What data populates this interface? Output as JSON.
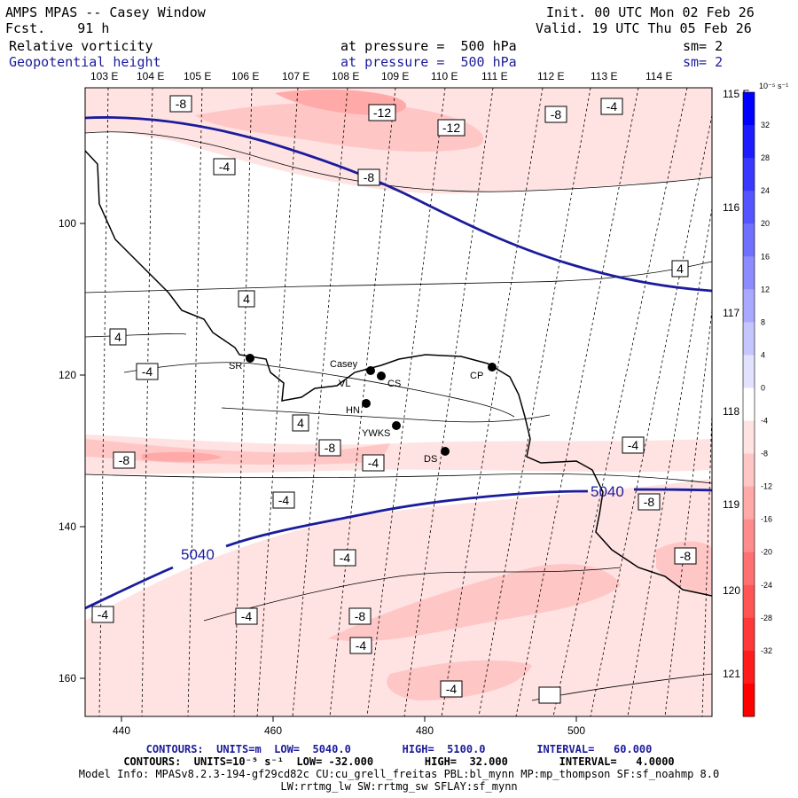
{
  "header": {
    "model": "AMPS MPAS -- Casey Window",
    "fcst_label": "Fcst.",
    "fcst_value": "91 h",
    "init_label": "Init.",
    "init_value": "00 UTC Mon 02 Feb 26",
    "valid_label": "Valid.",
    "valid_value": "19 UTC Thu 05 Feb 26",
    "field1": "Relative vorticity",
    "field1_pressure": "at pressure =  500 hPa",
    "field1_sm": "sm= 2",
    "field2": "Geopotential height",
    "field2_pressure": "at pressure =  500 hPa",
    "field2_sm": "sm= 2"
  },
  "top_lon_labels": [
    "103 E",
    "104 E",
    "105 E",
    "106 E",
    "107 E",
    "108 E",
    "109 E",
    "110 E",
    "111 E",
    "112 E",
    "113 E",
    "114 E"
  ],
  "right_lon_labels": [
    "115 E",
    "116 E",
    "117 E",
    "118 E",
    "119 E",
    "120 E",
    "121 E"
  ],
  "x_ticks": [
    "440",
    "460",
    "480",
    "500"
  ],
  "y_ticks": [
    "100",
    "120",
    "140",
    "160"
  ],
  "colorbar": {
    "unit": "10⁻⁵ s⁻¹",
    "labels": [
      "32",
      "28",
      "24",
      "20",
      "16",
      "12",
      "8",
      "4",
      "0",
      "-4",
      "-8",
      "-12",
      "-16",
      "-20",
      "-24",
      "-28",
      "-32"
    ],
    "colors": [
      "#0000ff",
      "#1c1cff",
      "#3838ff",
      "#5555ff",
      "#7070ff",
      "#8c8cff",
      "#a9a9ff",
      "#c6c6ff",
      "#e2e2ff",
      "#ffffff",
      "#ffe2e2",
      "#ffc6c6",
      "#ffa9a9",
      "#ff8c8c",
      "#ff7070",
      "#ff5555",
      "#ff3838",
      "#ff1c1c",
      "#ff0000"
    ]
  },
  "stations": [
    {
      "label": "SR"
    },
    {
      "label": "Casey"
    },
    {
      "label": "VL"
    },
    {
      "label": "CS"
    },
    {
      "label": "CP"
    },
    {
      "label": "HN"
    },
    {
      "label": "YWKS"
    },
    {
      "label": "DS"
    }
  ],
  "contour_labels": [
    "-8",
    "-12",
    "-12",
    "-8",
    "-4",
    "-4",
    "-8",
    "4",
    "4",
    "4",
    "-4",
    "4",
    "-8",
    "-8",
    "-4",
    "-4",
    "-4",
    "-4",
    "-4",
    "-8",
    "-8",
    "-8",
    "-4",
    "-4",
    "-4"
  ],
  "height_labels": [
    "5040",
    "5040"
  ],
  "footer": {
    "line1_label": "CONTOURS:  UNITS=m  LOW=  5040.0",
    "line1_high": "HIGH=  5100.0",
    "line1_interval": "INTERVAL=   60.000",
    "line2_label": "CONTOURS:  UNITS=10⁻⁵ s⁻¹  LOW= -32.000",
    "line2_high": "HIGH=  32.000",
    "line2_interval": "INTERVAL=   4.0000",
    "model_info": "Model Info: MPASv8.2.3-194-gf29cd82c CU:cu_grell_freitas PBL:bl_mynn MP:mp_thompson SF:sf_noahmp 8.0",
    "model_info2": "LW:rrtmg_lw SW:rrtmg_sw SFLAY:sf_mynn"
  }
}
